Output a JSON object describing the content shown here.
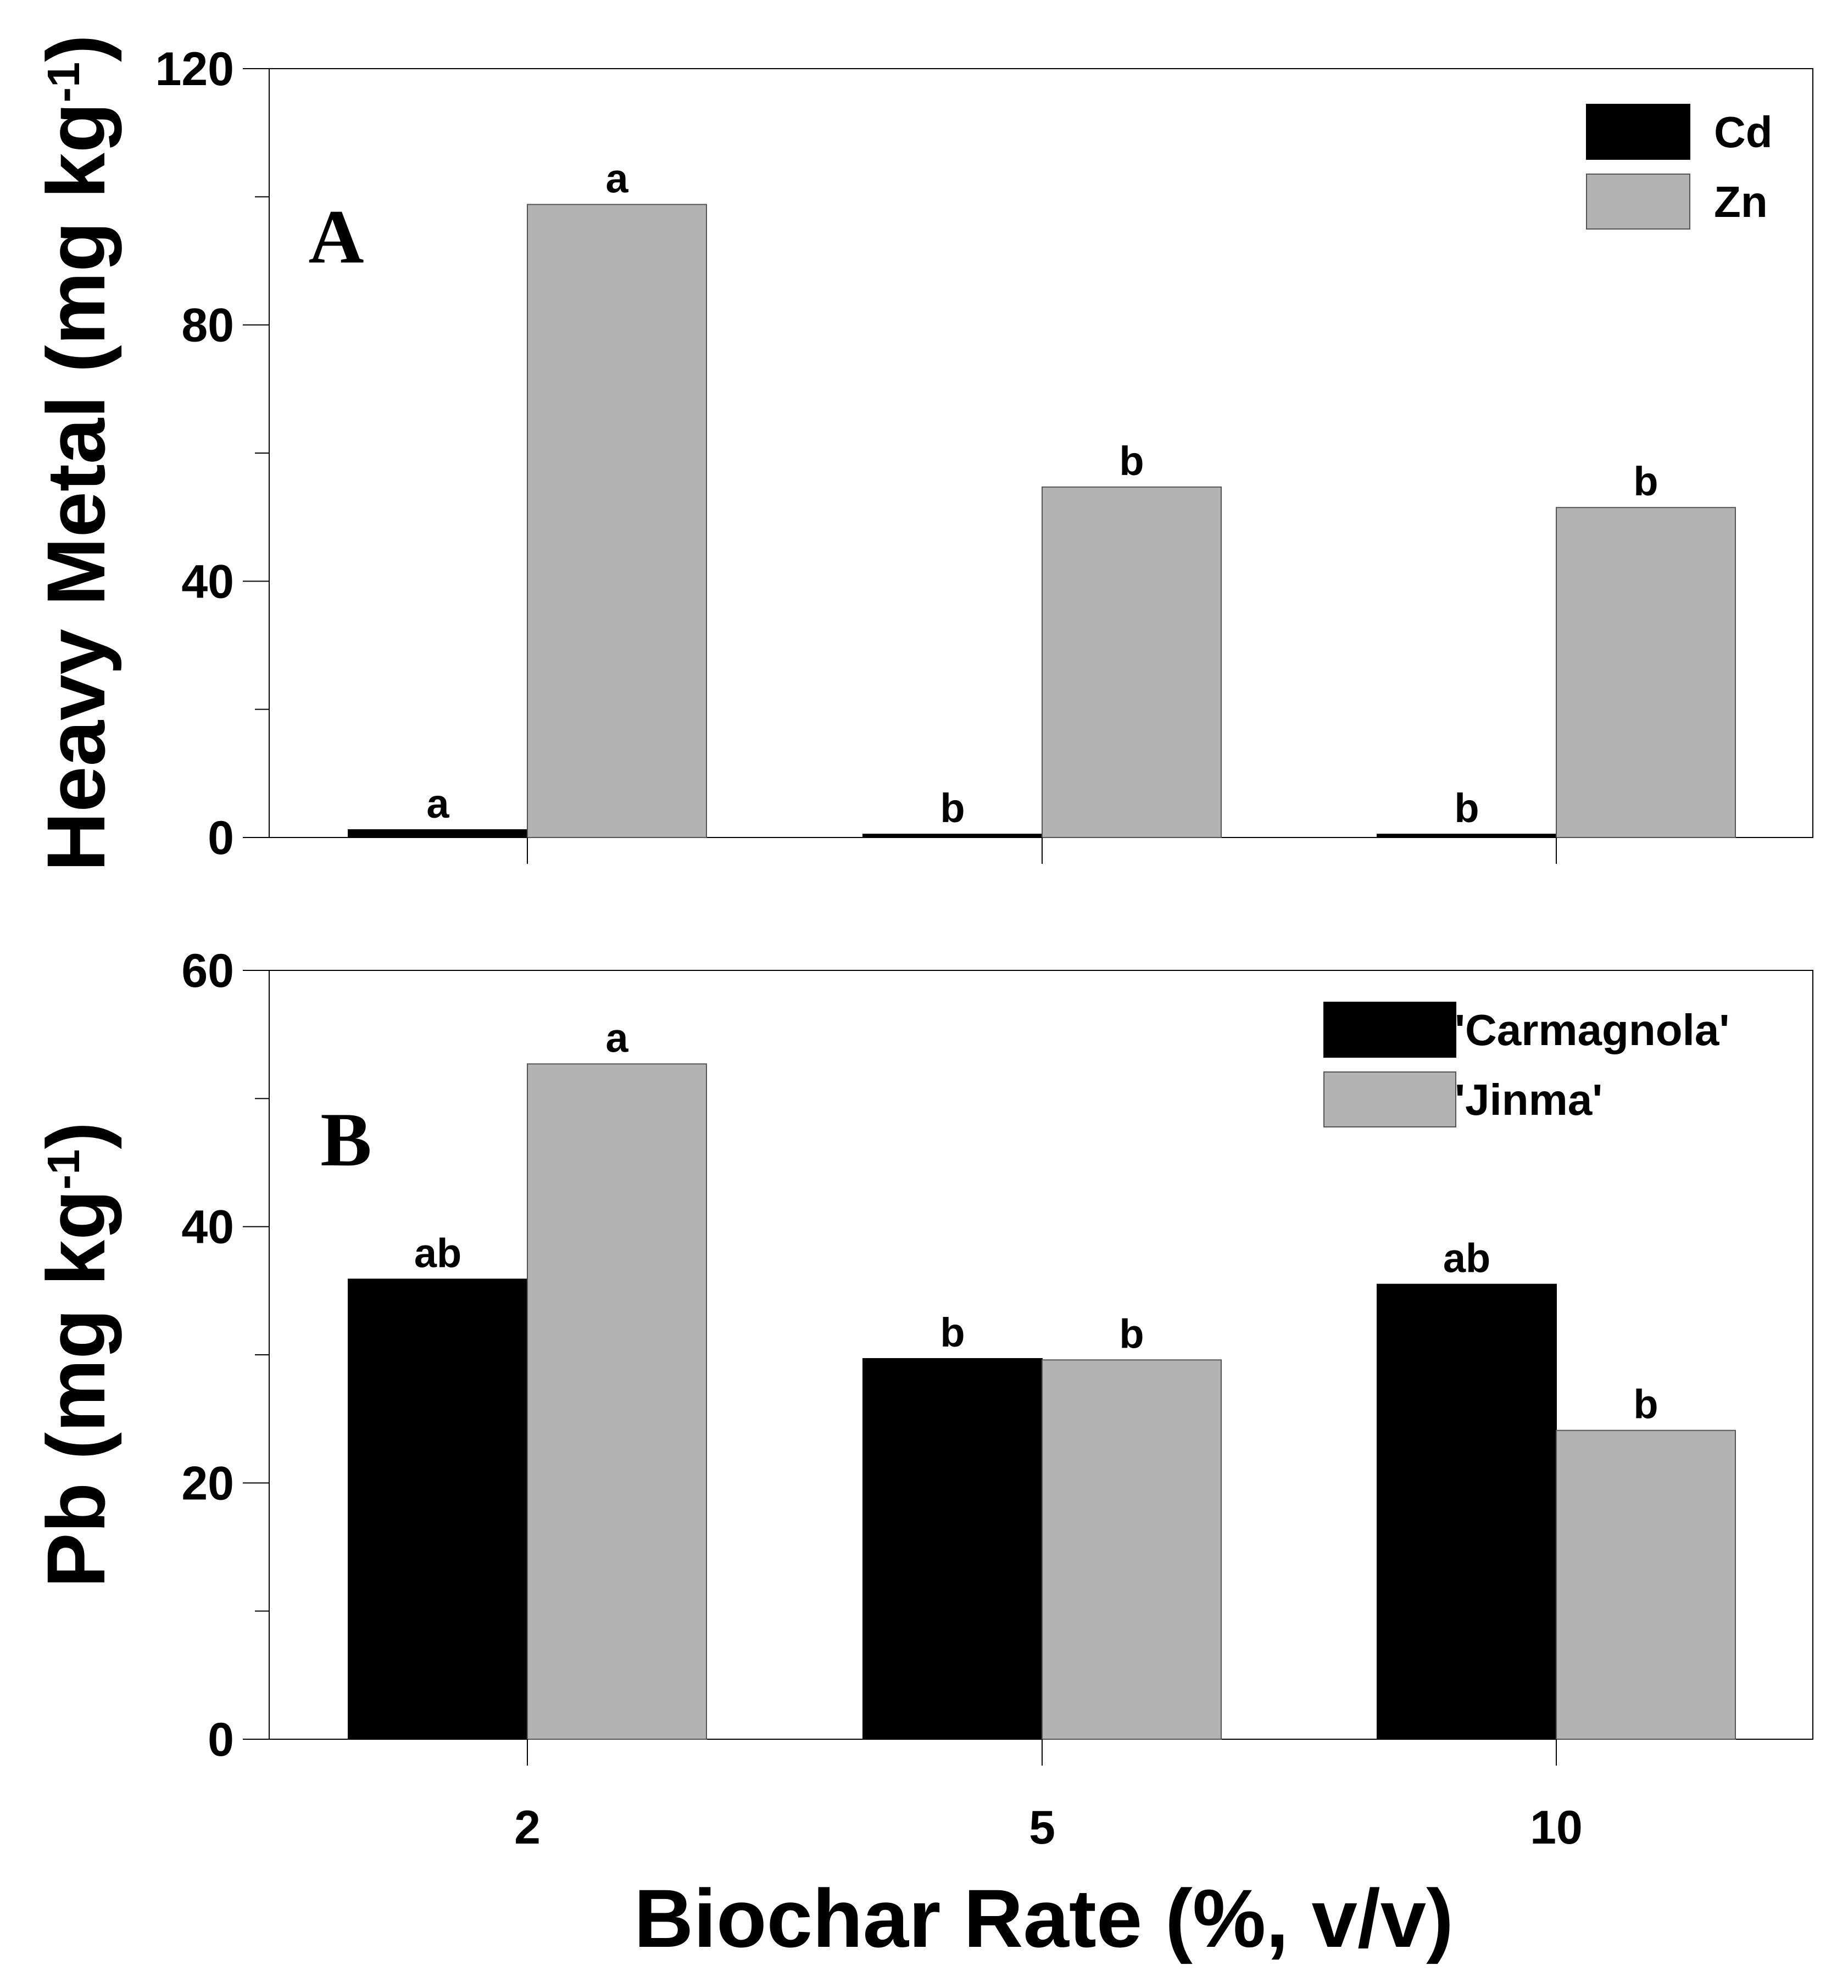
{
  "chart_data": [
    {
      "type": "bar",
      "panel_label": "A",
      "categories": [
        "2",
        "5",
        "10"
      ],
      "ylabel": "Heavy Metal (mg kg",
      "ylabel_sup": "-1",
      "ylabel_close": ")",
      "ylim": [
        0,
        120
      ],
      "yticks": [
        "0",
        "40",
        "80",
        "120"
      ],
      "legend_position": "top-right",
      "series": [
        {
          "name": "Cd",
          "color": "#000000",
          "values": [
            1.2,
            0.5,
            0.5
          ],
          "labels": [
            "a",
            "b",
            "b"
          ]
        },
        {
          "name": "Zn",
          "color": "#b3b3b3",
          "values": [
            98.8,
            54.7,
            51.5
          ],
          "labels": [
            "a",
            "b",
            "b"
          ]
        }
      ]
    },
    {
      "type": "bar",
      "panel_label": "B",
      "categories": [
        "2",
        "5",
        "10"
      ],
      "ylabel": "Pb (mg kg",
      "ylabel_sup": "-1",
      "ylabel_close": ")",
      "ylim": [
        0,
        60
      ],
      "yticks": [
        "0",
        "20",
        "40",
        "60"
      ],
      "legend_position": "top-right",
      "series": [
        {
          "name": "'Carmagnola'",
          "color": "#000000",
          "values": [
            35.9,
            29.7,
            35.5
          ],
          "labels": [
            "ab",
            "b",
            "ab"
          ]
        },
        {
          "name": "'Jinma'",
          "color": "#b3b3b3",
          "values": [
            52.7,
            29.6,
            24.1
          ],
          "labels": [
            "a",
            "b",
            "b"
          ]
        }
      ]
    }
  ],
  "xlabel": "Biochar Rate (%, v/v)"
}
